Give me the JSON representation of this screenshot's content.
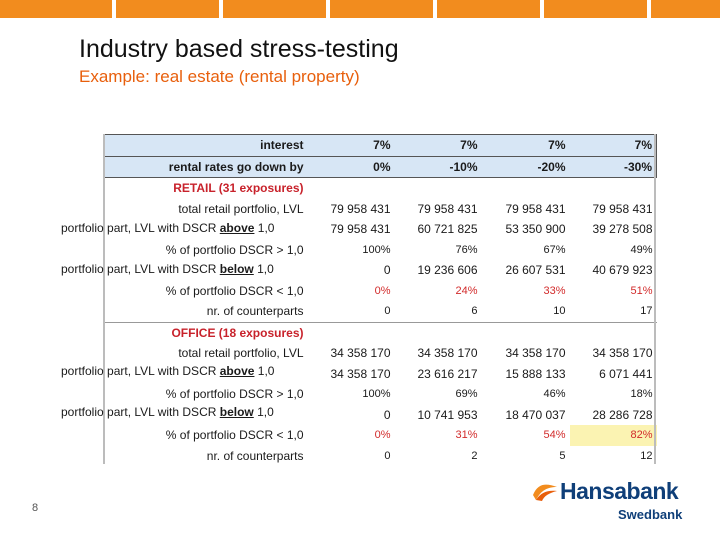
{
  "slide": {
    "title": "Industry based stress-testing",
    "subtitle": "Example: real estate (rental property)",
    "page_number": "8"
  },
  "header_rows": [
    {
      "label": "interest",
      "values": [
        "7%",
        "7%",
        "7%",
        "7%"
      ]
    },
    {
      "label": "rental rates go down by",
      "values": [
        "0%",
        "-10%",
        "-20%",
        "-30%"
      ]
    }
  ],
  "sections": [
    {
      "title": "RETAIL (31 exposures)",
      "rows": [
        {
          "label": "total retail portfolio, LVL",
          "values": [
            "79 958 431",
            "79 958 431",
            "79 958 431",
            "79 958 431"
          ]
        },
        {
          "label_prefix": "portfolio part, LVL with  DSCR",
          "label_emph": "above",
          "label_suffix": "1,0",
          "values": [
            "79 958 431",
            "60 721 825",
            "53 350 900",
            "39 278 508"
          ]
        },
        {
          "label": "% of portfolio DSCR > 1,0",
          "values": [
            "100%",
            "76%",
            "67%",
            "49%"
          ]
        },
        {
          "label_prefix": "portfolio part, LVL with  DSCR",
          "label_emph": "below",
          "label_suffix": "1,0",
          "values": [
            "0",
            "19 236 606",
            "26 607 531",
            "40 679 923"
          ]
        },
        {
          "label": "% of portfolio DSCR < 1,0",
          "values": [
            "0%",
            "24%",
            "33%",
            "51%"
          ]
        },
        {
          "label": "nr. of counterparts",
          "values": [
            "0",
            "6",
            "10",
            "17"
          ]
        }
      ]
    },
    {
      "title": "OFFICE (18 exposures)",
      "rows": [
        {
          "label": "total retail portfolio, LVL",
          "values": [
            "34 358 170",
            "34 358 170",
            "34 358 170",
            "34 358 170"
          ]
        },
        {
          "label_prefix": "portfolio part, LVL with  DSCR",
          "label_emph": "above",
          "label_suffix": "1,0",
          "values": [
            "34 358 170",
            "23 616 217",
            "15 888 133",
            "6 071 441"
          ]
        },
        {
          "label": "% of portfolio DSCR > 1,0",
          "values": [
            "100%",
            "69%",
            "46%",
            "18%"
          ]
        },
        {
          "label_prefix": "portfolio part, LVL with  DSCR",
          "label_emph": "below",
          "label_suffix": "1,0",
          "values": [
            "0",
            "10 741 953",
            "18 470 037",
            "28 286 728"
          ]
        },
        {
          "label": "% of portfolio DSCR < 1,0",
          "values": [
            "0%",
            "31%",
            "54%",
            "82%"
          ]
        },
        {
          "label": "nr. of counterparts",
          "values": [
            "0",
            "2",
            "5",
            "12"
          ]
        }
      ]
    }
  ],
  "logo": {
    "brand": "Hansabank",
    "sub_brand": "Swedbank"
  },
  "colors": {
    "accent_orange": "#f28c1e",
    "subtitle_orange": "#e85f0c",
    "section_red": "#c8222b",
    "header_blue": "#d7e6f5",
    "highlight_yellow": "#fbf3b2",
    "logo_blue": "#0f3f79"
  }
}
